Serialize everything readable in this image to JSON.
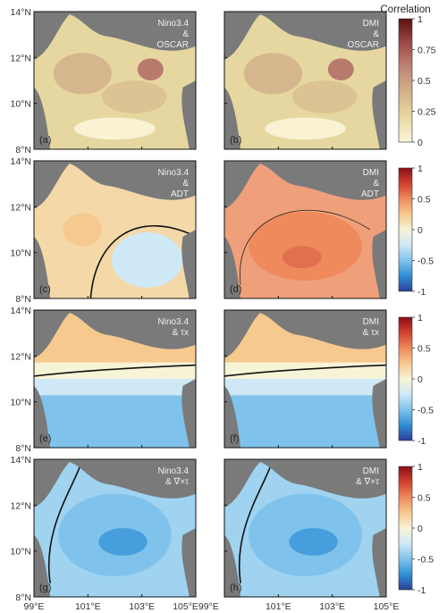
{
  "chart_data": {
    "type": "heatmap",
    "description_type": "correlation maps, 4x2 panel grid",
    "x_ticks": [
      "99°E",
      "101°E",
      "103°E",
      "105°E"
    ],
    "y_ticks": [
      "8°N",
      "10°N",
      "12°N",
      "14°N"
    ],
    "x_bottom_labels": [
      "99°E",
      "101°E",
      "103°E",
      "105°E99°E",
      "101°E",
      "103°E",
      "105°E"
    ],
    "panels": [
      {
        "id": "a",
        "label": "(a)",
        "title_lines": [
          "Nino3.4",
          "&",
          "OSCAR"
        ],
        "field": "positive"
      },
      {
        "id": "b",
        "label": "(b)",
        "title_lines": [
          "DMI",
          "&",
          "OSCAR"
        ],
        "field": "positive"
      },
      {
        "id": "c",
        "label": "(c)",
        "title_lines": [
          "Nino3.4",
          "&",
          "ADT"
        ],
        "field": "mixed"
      },
      {
        "id": "d",
        "label": "(d)",
        "title_lines": [
          "DMI",
          "&",
          "ADT"
        ],
        "field": "warm"
      },
      {
        "id": "e",
        "label": "(e)",
        "title_lines": [
          "Nino3.4",
          "& τx"
        ],
        "field": "gradient"
      },
      {
        "id": "f",
        "label": "(f)",
        "title_lines": [
          "DMI",
          "& τx"
        ],
        "field": "gradient"
      },
      {
        "id": "g",
        "label": "(g)",
        "title_lines": [
          "Nino3.4",
          "& ∇×τ"
        ],
        "field": "cool"
      },
      {
        "id": "h",
        "label": "(h)",
        "title_lines": [
          "DMI",
          "& ∇×τ"
        ],
        "field": "cool"
      }
    ],
    "colorbars": [
      {
        "title": "Correlation",
        "range": [
          0,
          1
        ],
        "ticks": [
          "1",
          "0.75",
          "0.5",
          "0.25",
          "0"
        ]
      },
      {
        "title": "",
        "range": [
          -1,
          1
        ],
        "ticks": [
          "1",
          "0.5",
          "0",
          "-0.5",
          "-1"
        ]
      },
      {
        "title": "",
        "range": [
          -1,
          1
        ],
        "ticks": [
          "1",
          "0.5",
          "0",
          "-0.5",
          "-1"
        ]
      },
      {
        "title": "",
        "range": [
          -1,
          1
        ],
        "ticks": [
          "1",
          "0.5",
          "0",
          "-0.5",
          "-1"
        ]
      }
    ],
    "colors": {
      "land": "#7a7a7a",
      "seq_scale": [
        "#fbf6d9",
        "#e8d8a3",
        "#d4b38a",
        "#c08876",
        "#a04a48",
        "#5a1010"
      ],
      "div_scale": [
        "#2c3e99",
        "#2f8fd6",
        "#7fc3ec",
        "#cfe8f6",
        "#f7f3d6",
        "#f6c98e",
        "#ee8a5b",
        "#d0412f",
        "#8a0e18"
      ]
    }
  }
}
